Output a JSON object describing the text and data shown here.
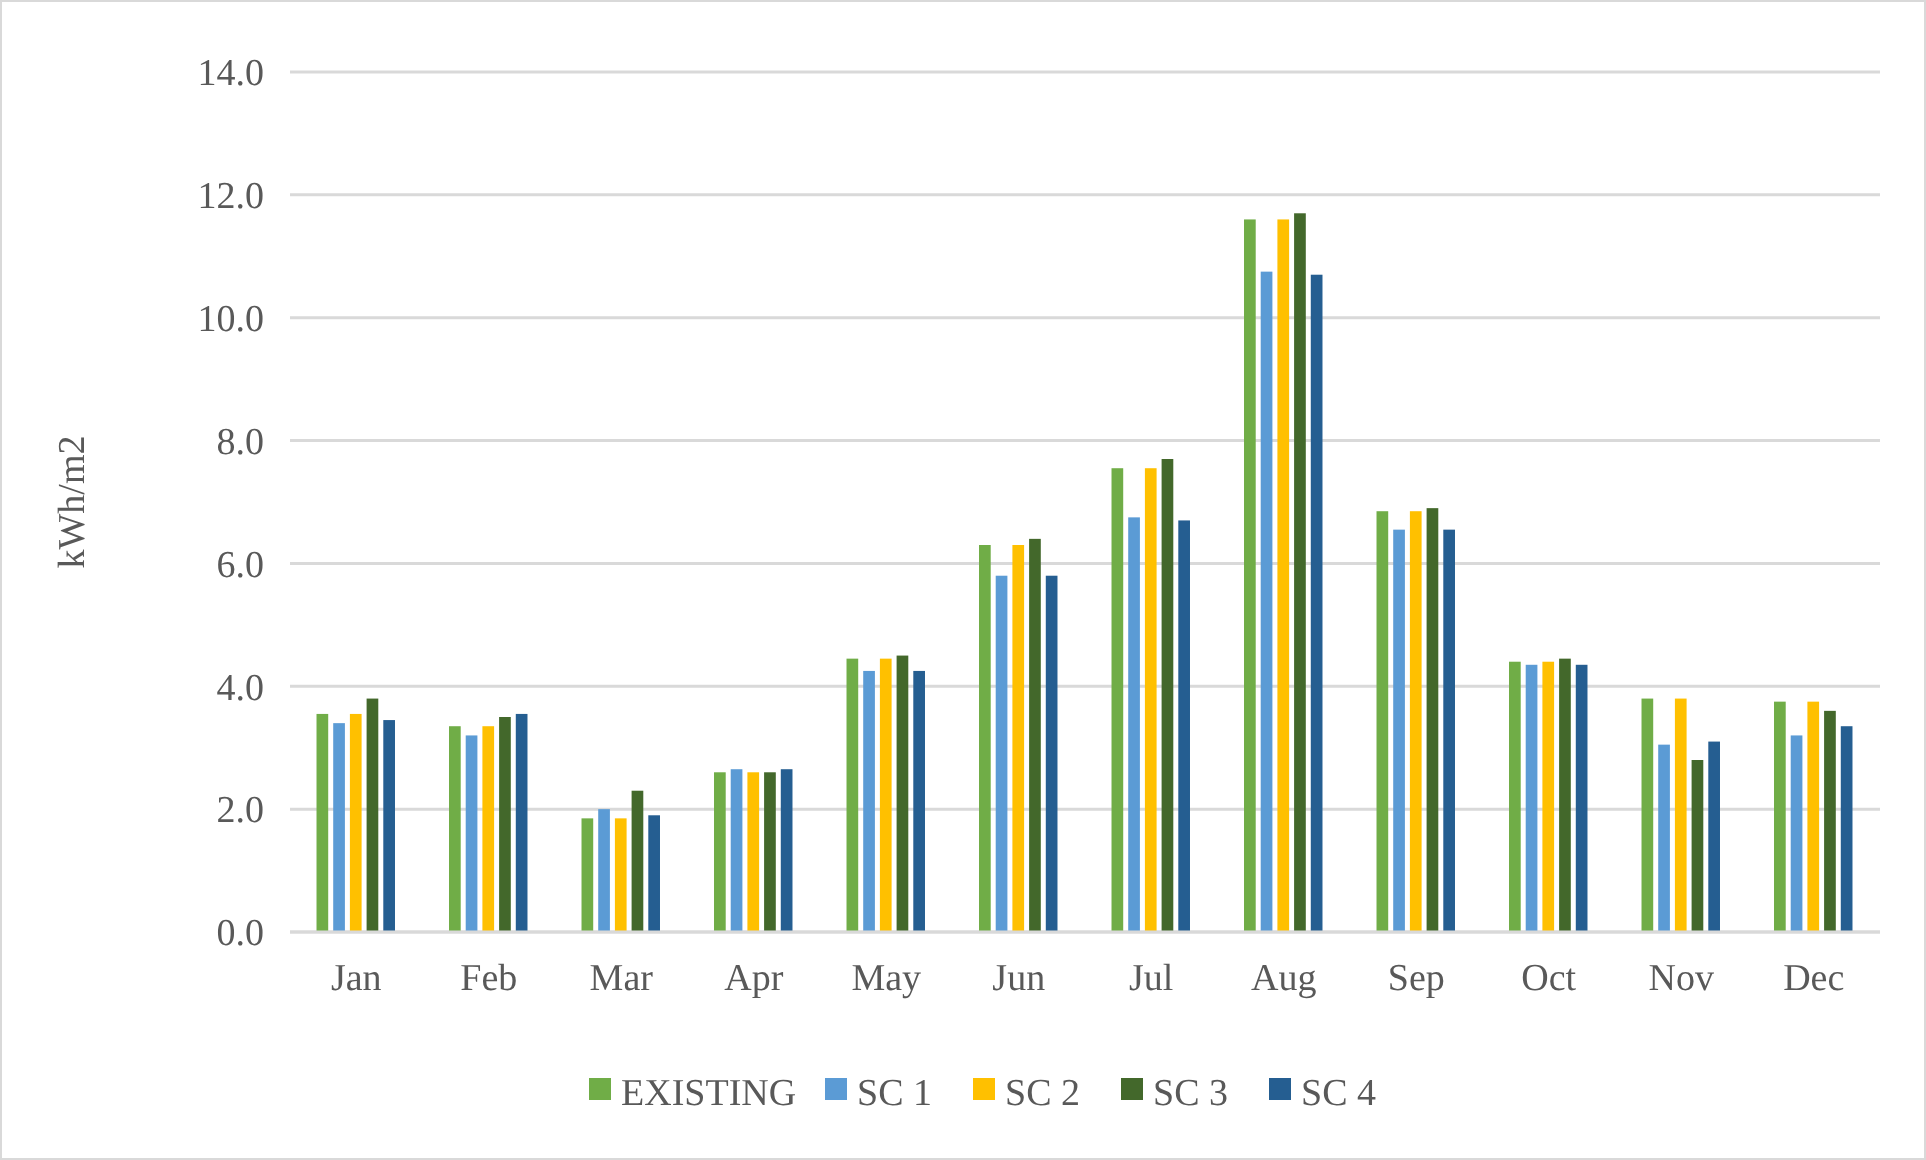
{
  "chart_data": {
    "type": "bar",
    "ylabel": "kWh/m2",
    "categories": [
      "Jan",
      "Feb",
      "Mar",
      "Apr",
      "May",
      "Jun",
      "Jul",
      "Aug",
      "Sep",
      "Oct",
      "Nov",
      "Dec"
    ],
    "series": [
      {
        "name": "EXISTING",
        "color": "#70ad47",
        "values": [
          3.55,
          3.35,
          1.85,
          2.6,
          4.45,
          6.3,
          7.55,
          11.6,
          6.85,
          4.4,
          3.8,
          3.75
        ]
      },
      {
        "name": "SC 1",
        "color": "#5b9bd5",
        "values": [
          3.4,
          3.2,
          2.0,
          2.65,
          4.25,
          5.8,
          6.75,
          10.75,
          6.55,
          4.35,
          3.05,
          3.2
        ]
      },
      {
        "name": "SC 2",
        "color": "#ffc000",
        "values": [
          3.55,
          3.35,
          1.85,
          2.6,
          4.45,
          6.3,
          7.55,
          11.6,
          6.85,
          4.4,
          3.8,
          3.75
        ]
      },
      {
        "name": "SC 3",
        "color": "#43682b",
        "values": [
          3.8,
          3.5,
          2.3,
          2.6,
          4.5,
          6.4,
          7.7,
          11.7,
          6.9,
          4.45,
          2.8,
          3.6
        ]
      },
      {
        "name": "SC 4",
        "color": "#255e91",
        "values": [
          3.45,
          3.55,
          1.9,
          2.65,
          4.25,
          5.8,
          6.7,
          10.7,
          6.55,
          4.35,
          3.1,
          3.35
        ]
      }
    ],
    "ylim": [
      0,
      14
    ],
    "yticks": [
      {
        "value": 0,
        "label": "0.0"
      },
      {
        "value": 2,
        "label": "2.0"
      },
      {
        "value": 4,
        "label": "4.0"
      },
      {
        "value": 6,
        "label": "6.0"
      },
      {
        "value": 8,
        "label": "8.0"
      },
      {
        "value": 10,
        "label": "10.0"
      },
      {
        "value": 12,
        "label": "12.0"
      },
      {
        "value": 14,
        "label": "14.0"
      }
    ],
    "grid": "y",
    "legend": "bottom"
  }
}
